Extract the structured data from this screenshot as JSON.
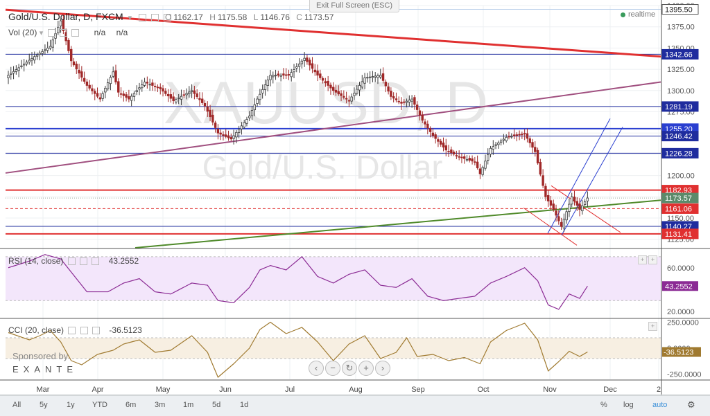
{
  "window": {
    "exit_fullscreen": "Exit Full Screen (ESC)"
  },
  "header": {
    "symbol": "Gold/U.S. Dollar, D, FXCM",
    "ohlc": {
      "o_label": "O",
      "o": "1162.17",
      "h_label": "H",
      "h": "1175.58",
      "l_label": "L",
      "l": "1146.76",
      "c_label": "C",
      "c": "1173.57"
    },
    "volume_label": "Vol (20)",
    "volume_values": [
      "n/a",
      "n/a"
    ],
    "realtime": "realtime"
  },
  "watermark": {
    "symbol": "XAUUSD, D",
    "name": "Gold/U.S. Dollar"
  },
  "colors": {
    "up": "#3a3a3a",
    "down": "#a02828",
    "resistance": "#e03030",
    "support": "#1f2c9e",
    "level_blue": "#2a3fd0",
    "trend_purple": "#a04f7f",
    "trend_green": "#4f8a2a",
    "rsi": "#8b2b94",
    "cci": "#a07a30",
    "last_price": "#5b8a6a"
  },
  "chart_data": [
    {
      "type": "candlestick",
      "title": "Gold/U.S. Dollar, D, FXCM",
      "ylim": [
        1115,
        1400
      ],
      "y_ticks": [
        "1400.00",
        "1375.00",
        "1350.00",
        "1325.00",
        "1300.00",
        "1275.00",
        "1250.00",
        "1225.00",
        "1200.00",
        "1175.00",
        "1150.00",
        "1125.00"
      ],
      "x_ticks": [
        "Mar",
        "Apr",
        "May",
        "Jun",
        "Jul",
        "Aug",
        "Sep",
        "Oct",
        "Nov",
        "Dec",
        "2"
      ],
      "key_path": [
        [
          0,
          1318
        ],
        [
          10,
          1340
        ],
        [
          16,
          1352
        ],
        [
          20,
          1382
        ],
        [
          24,
          1335
        ],
        [
          30,
          1306
        ],
        [
          35,
          1290
        ],
        [
          40,
          1322
        ],
        [
          42,
          1298
        ],
        [
          46,
          1290
        ],
        [
          52,
          1310
        ],
        [
          58,
          1302
        ],
        [
          63,
          1288
        ],
        [
          70,
          1300
        ],
        [
          75,
          1282
        ],
        [
          80,
          1250
        ],
        [
          85,
          1243
        ],
        [
          92,
          1270
        ],
        [
          95,
          1290
        ],
        [
          100,
          1318
        ],
        [
          107,
          1318
        ],
        [
          113,
          1338
        ],
        [
          118,
          1318
        ],
        [
          124,
          1300
        ],
        [
          130,
          1288
        ],
        [
          136,
          1315
        ],
        [
          142,
          1318
        ],
        [
          146,
          1293
        ],
        [
          150,
          1285
        ],
        [
          154,
          1290
        ],
        [
          158,
          1265
        ],
        [
          162,
          1247
        ],
        [
          167,
          1230
        ],
        [
          172,
          1222
        ],
        [
          178,
          1216
        ],
        [
          180,
          1202
        ],
        [
          184,
          1232
        ],
        [
          190,
          1245
        ],
        [
          197,
          1249
        ],
        [
          201,
          1228
        ],
        [
          205,
          1175
        ],
        [
          208,
          1160
        ],
        [
          211,
          1140
        ],
        [
          215,
          1175
        ],
        [
          218,
          1160
        ],
        [
          221,
          1173.57
        ]
      ],
      "candle_count": 222,
      "horizontal_levels": [
        {
          "label": "1395.50",
          "value": 1395.5,
          "color": "#9fb2d8"
        },
        {
          "label": "1342.66",
          "value": 1342.66,
          "color": "#1f2c9e"
        },
        {
          "label": "1281.19",
          "value": 1281.19,
          "color": "#1f2c9e"
        },
        {
          "label": "1255.20",
          "value": 1255.2,
          "color": "#2a3fd0"
        },
        {
          "label": "1246.42",
          "value": 1246.42,
          "color": "#1f2c9e"
        },
        {
          "label": "1226.28",
          "value": 1226.28,
          "color": "#1f2c9e"
        },
        {
          "label": "1182.93",
          "value": 1182.93,
          "color": "#e03030"
        },
        {
          "label": "1173.57",
          "value": 1173.57,
          "color": "#5b8a6a"
        },
        {
          "label": "1161.06",
          "value": 1161.06,
          "color": "#e03030"
        },
        {
          "label": "1140.27",
          "value": 1140.27,
          "color": "#1f2c9e"
        },
        {
          "label": "1131.41",
          "value": 1131.41,
          "color": "#e03030"
        }
      ]
    },
    {
      "type": "line",
      "title": "RSI (14, close)",
      "current_label": "43.2552",
      "current": 43.2552,
      "ylim": [
        15,
        75
      ],
      "y_ticks": [
        "60.0000",
        "20.0000"
      ],
      "band": [
        30,
        70
      ],
      "key_path": [
        [
          0,
          60
        ],
        [
          8,
          66
        ],
        [
          14,
          72
        ],
        [
          20,
          68
        ],
        [
          26,
          50
        ],
        [
          30,
          38
        ],
        [
          38,
          38
        ],
        [
          44,
          46
        ],
        [
          50,
          50
        ],
        [
          56,
          38
        ],
        [
          62,
          36
        ],
        [
          70,
          46
        ],
        [
          76,
          44
        ],
        [
          80,
          30
        ],
        [
          86,
          28
        ],
        [
          92,
          42
        ],
        [
          96,
          58
        ],
        [
          100,
          62
        ],
        [
          106,
          58
        ],
        [
          112,
          70
        ],
        [
          118,
          52
        ],
        [
          124,
          46
        ],
        [
          130,
          54
        ],
        [
          136,
          58
        ],
        [
          142,
          44
        ],
        [
          148,
          42
        ],
        [
          154,
          50
        ],
        [
          160,
          34
        ],
        [
          166,
          30
        ],
        [
          172,
          32
        ],
        [
          178,
          34
        ],
        [
          184,
          46
        ],
        [
          190,
          52
        ],
        [
          197,
          60
        ],
        [
          202,
          48
        ],
        [
          206,
          26
        ],
        [
          210,
          22
        ],
        [
          214,
          36
        ],
        [
          218,
          32
        ],
        [
          221,
          43.2552
        ]
      ]
    },
    {
      "type": "line",
      "title": "CCI (20, close)",
      "current_label": "-36.5123",
      "current": -36.5123,
      "ylim": [
        -300,
        280
      ],
      "y_ticks": [
        "250.0000",
        "0.0000",
        "-250.0000"
      ],
      "band": [
        -100,
        100
      ],
      "key_path": [
        [
          0,
          150
        ],
        [
          8,
          80
        ],
        [
          12,
          120
        ],
        [
          16,
          170
        ],
        [
          20,
          60
        ],
        [
          24,
          -120
        ],
        [
          28,
          -160
        ],
        [
          34,
          -60
        ],
        [
          40,
          -20
        ],
        [
          44,
          40
        ],
        [
          50,
          80
        ],
        [
          56,
          -40
        ],
        [
          62,
          -20
        ],
        [
          70,
          120
        ],
        [
          76,
          -40
        ],
        [
          80,
          -280
        ],
        [
          86,
          -150
        ],
        [
          92,
          0
        ],
        [
          96,
          180
        ],
        [
          100,
          250
        ],
        [
          106,
          140
        ],
        [
          112,
          200
        ],
        [
          118,
          60
        ],
        [
          124,
          -120
        ],
        [
          130,
          40
        ],
        [
          136,
          120
        ],
        [
          142,
          -100
        ],
        [
          148,
          -40
        ],
        [
          152,
          100
        ],
        [
          156,
          -80
        ],
        [
          162,
          -60
        ],
        [
          168,
          -120
        ],
        [
          174,
          -90
        ],
        [
          180,
          -150
        ],
        [
          184,
          60
        ],
        [
          190,
          170
        ],
        [
          197,
          240
        ],
        [
          202,
          80
        ],
        [
          206,
          -220
        ],
        [
          210,
          -130
        ],
        [
          214,
          -30
        ],
        [
          218,
          -80
        ],
        [
          221,
          -36.5123
        ]
      ]
    }
  ],
  "toolbar": {
    "ranges": [
      "All",
      "5y",
      "1y",
      "YTD",
      "6m",
      "3m",
      "1m",
      "5d",
      "1d"
    ],
    "right": [
      "%",
      "log",
      "auto"
    ],
    "active": "auto"
  },
  "sponsor": {
    "line1": "Sponsored by",
    "brand": "EXANTE"
  }
}
